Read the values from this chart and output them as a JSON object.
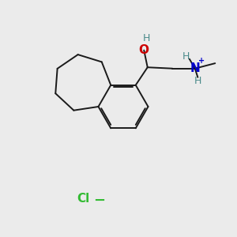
{
  "bg_color": "#ebebeb",
  "bond_color": "#1a1a1a",
  "o_color": "#cc0000",
  "n_color": "#0000cc",
  "cl_color": "#33bb33",
  "h_color": "#4a8a8a",
  "title": "",
  "xlim": [
    0,
    10
  ],
  "ylim": [
    0,
    10
  ]
}
